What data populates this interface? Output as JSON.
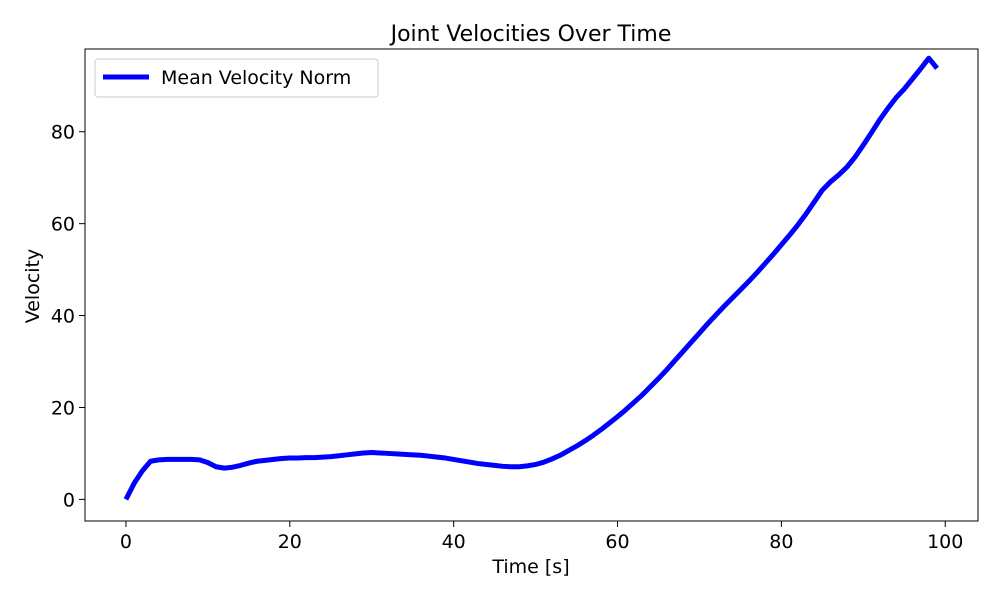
{
  "chart_data": {
    "type": "line",
    "title": "Joint Velocities Over Time",
    "xlabel": "Time [s]",
    "ylabel": "Velocity",
    "xlim": [
      -5,
      104
    ],
    "ylim": [
      -4.7,
      98
    ],
    "xticks": [
      0,
      20,
      40,
      60,
      80,
      100
    ],
    "yticks": [
      0,
      20,
      40,
      60,
      80
    ],
    "grid": false,
    "legend_position": "upper left",
    "series": [
      {
        "name": "Mean Velocity Norm",
        "color": "#0000ff",
        "x": [
          0,
          1,
          2,
          3,
          4,
          5,
          6,
          7,
          8,
          9,
          10,
          11,
          12,
          13,
          14,
          15,
          16,
          17,
          18,
          19,
          20,
          21,
          22,
          23,
          24,
          25,
          26,
          27,
          28,
          29,
          30,
          31,
          32,
          33,
          34,
          35,
          36,
          37,
          38,
          39,
          40,
          41,
          42,
          43,
          44,
          45,
          46,
          47,
          48,
          49,
          50,
          51,
          52,
          53,
          54,
          55,
          56,
          57,
          58,
          59,
          60,
          61,
          62,
          63,
          64,
          65,
          66,
          67,
          68,
          69,
          70,
          71,
          72,
          73,
          74,
          75,
          76,
          77,
          78,
          79,
          80,
          81,
          82,
          83,
          84,
          85,
          86,
          87,
          88,
          89,
          90,
          91,
          92,
          93,
          94,
          95,
          96,
          97,
          98,
          99
        ],
        "y": [
          0.0,
          3.5,
          6.2,
          8.3,
          8.6,
          8.7,
          8.7,
          8.7,
          8.7,
          8.6,
          8.0,
          7.1,
          6.8,
          7.0,
          7.4,
          7.9,
          8.3,
          8.5,
          8.7,
          8.9,
          9.0,
          9.0,
          9.1,
          9.1,
          9.2,
          9.3,
          9.5,
          9.7,
          9.9,
          10.1,
          10.2,
          10.1,
          10.0,
          9.9,
          9.8,
          9.7,
          9.6,
          9.4,
          9.2,
          9.0,
          8.7,
          8.4,
          8.1,
          7.8,
          7.6,
          7.4,
          7.2,
          7.1,
          7.1,
          7.3,
          7.6,
          8.1,
          8.8,
          9.6,
          10.6,
          11.6,
          12.7,
          13.9,
          15.2,
          16.6,
          18.0,
          19.5,
          21.1,
          22.7,
          24.5,
          26.3,
          28.2,
          30.2,
          32.2,
          34.2,
          36.2,
          38.2,
          40.1,
          42.0,
          43.8,
          45.6,
          47.4,
          49.3,
          51.3,
          53.3,
          55.4,
          57.5,
          59.7,
          62.1,
          64.7,
          67.3,
          69.1,
          70.6,
          72.3,
          74.5,
          77.1,
          79.8,
          82.6,
          85.1,
          87.4,
          89.3,
          91.5,
          93.7,
          96.0,
          93.8
        ]
      }
    ]
  }
}
